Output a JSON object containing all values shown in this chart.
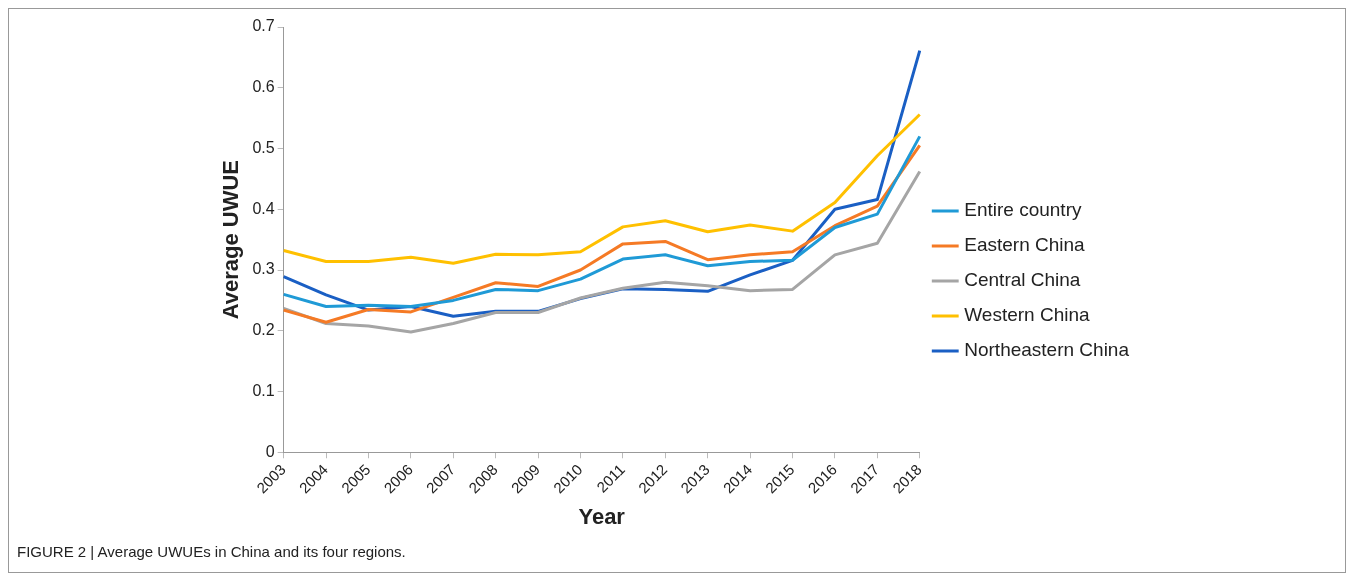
{
  "chart_data": {
    "type": "line",
    "xlabel": "Year",
    "ylabel": "Average UWUE",
    "categories": [
      "2003",
      "2004",
      "2005",
      "2006",
      "2007",
      "2008",
      "2009",
      "2010",
      "2011",
      "2012",
      "2013",
      "2014",
      "2015",
      "2016",
      "2017",
      "2018"
    ],
    "series": [
      {
        "name": "Entire country",
        "color": "#1f9ad6",
        "values": [
          0.26,
          0.24,
          0.242,
          0.24,
          0.25,
          0.268,
          0.266,
          0.285,
          0.318,
          0.325,
          0.307,
          0.314,
          0.316,
          0.37,
          0.392,
          0.52
        ]
      },
      {
        "name": "Eastern China",
        "color": "#f57a25",
        "values": [
          0.234,
          0.214,
          0.235,
          0.231,
          0.255,
          0.279,
          0.273,
          0.3,
          0.343,
          0.347,
          0.317,
          0.325,
          0.33,
          0.373,
          0.405,
          0.505
        ]
      },
      {
        "name": "Central China",
        "color": "#a5a5a5",
        "values": [
          0.237,
          0.212,
          0.208,
          0.198,
          0.212,
          0.23,
          0.23,
          0.254,
          0.27,
          0.28,
          0.274,
          0.266,
          0.268,
          0.325,
          0.344,
          0.462
        ]
      },
      {
        "name": "Western China",
        "color": "#ffc000",
        "values": [
          0.332,
          0.314,
          0.314,
          0.321,
          0.311,
          0.326,
          0.325,
          0.33,
          0.371,
          0.381,
          0.363,
          0.374,
          0.364,
          0.411,
          0.488,
          0.556
        ]
      },
      {
        "name": "Northeastern China",
        "color": "#1a5fc4",
        "values": [
          0.289,
          0.259,
          0.234,
          0.24,
          0.224,
          0.232,
          0.232,
          0.253,
          0.269,
          0.268,
          0.265,
          0.292,
          0.316,
          0.4,
          0.416,
          0.661
        ]
      }
    ],
    "ylim": [
      0,
      0.7
    ],
    "yticks": [
      0,
      0.1,
      0.2,
      0.3,
      0.4,
      0.5,
      0.6,
      0.7
    ],
    "grid": false,
    "legend": "right",
    "marker": "none",
    "line_style": "solid",
    "annotations": [
      "FIGURE 2 | Average UWUEs in China and its four regions."
    ]
  }
}
